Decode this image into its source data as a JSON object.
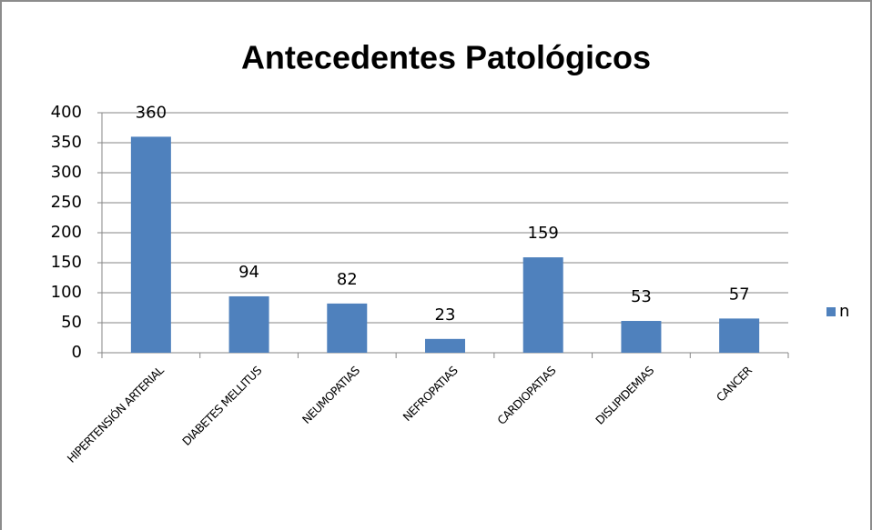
{
  "chart_data": {
    "type": "bar",
    "title": "Antecedentes Patológicos",
    "categories": [
      "HIPERTENSIÓN ARTERIAL",
      "DIABETES MELLITUS",
      "NEUMOPATIAS",
      "NEFROPATIAS",
      "CARDIOPATIAS",
      "DISLIPIDEMIAS",
      "CANCER"
    ],
    "series": [
      {
        "name": "n",
        "color": "#4f81bd",
        "values": [
          360,
          94,
          82,
          23,
          159,
          53,
          57
        ]
      }
    ],
    "ylim": [
      0,
      400
    ],
    "yticks": [
      0,
      50,
      100,
      150,
      200,
      250,
      300,
      350,
      400
    ],
    "grid": true,
    "legend": "right"
  }
}
